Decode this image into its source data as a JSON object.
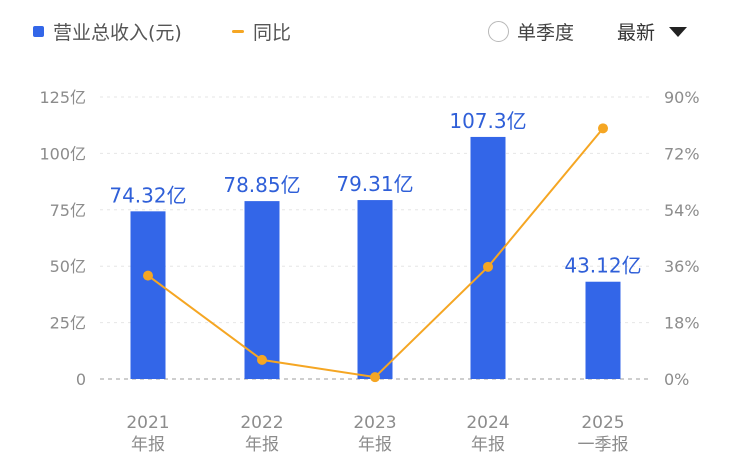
{
  "legend": {
    "bar_label": "营业总收入(元)",
    "line_label": "同比"
  },
  "controls": {
    "single_quarter_label": "单季度",
    "single_quarter_checked": false,
    "sort_label": "最新"
  },
  "colors": {
    "bar": "#3366e8",
    "line": "#f5a623",
    "value_label": "#2f5fd8",
    "axis_text": "#8c8c8c",
    "grid": "#e6e6e6"
  },
  "chart_data": {
    "type": "bar",
    "categories": [
      [
        "2021",
        "年报"
      ],
      [
        "2022",
        "年报"
      ],
      [
        "2023",
        "年报"
      ],
      [
        "2024",
        "年报"
      ],
      [
        "2025",
        "一季报"
      ]
    ],
    "series": [
      {
        "name": "营业总收入(元)",
        "type": "bar",
        "axis": "left",
        "values": [
          74.32,
          78.85,
          79.31,
          107.3,
          43.12
        ],
        "labels": [
          "74.32亿",
          "78.85亿",
          "79.31亿",
          "107.3亿",
          "43.12亿"
        ]
      },
      {
        "name": "同比",
        "type": "line",
        "axis": "right",
        "values": [
          33.0,
          6.1,
          0.6,
          35.8,
          80.0
        ]
      }
    ],
    "y_left": {
      "ticks": [
        0,
        25,
        50,
        75,
        100,
        125
      ],
      "tick_labels": [
        "0",
        "25亿",
        "50亿",
        "75亿",
        "100亿",
        "125亿"
      ],
      "range": [
        0,
        125
      ]
    },
    "y_right": {
      "ticks": [
        0,
        18,
        36,
        54,
        72,
        90
      ],
      "tick_labels": [
        "0%",
        "18%",
        "36%",
        "54%",
        "72%",
        "90%"
      ],
      "range": [
        0,
        90
      ]
    },
    "grid": true,
    "legend_position": "top-left"
  }
}
